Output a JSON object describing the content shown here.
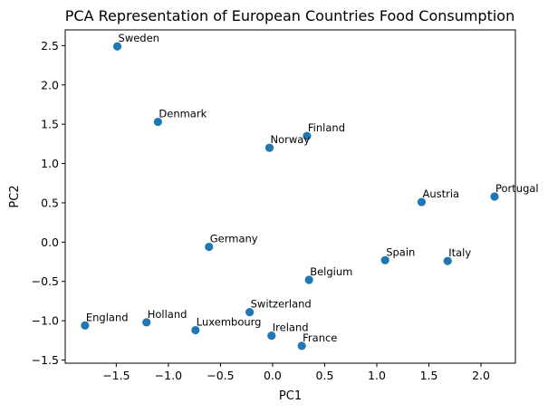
{
  "chart_data": {
    "type": "scatter",
    "title": "PCA Representation of European Countries Food Consumption",
    "xlabel": "PC1",
    "ylabel": "PC2",
    "xlim": [
      -1.99,
      2.33
    ],
    "ylim": [
      -1.54,
      2.7
    ],
    "xticks": [
      -1.5,
      -1.0,
      -0.5,
      0.0,
      0.5,
      1.0,
      1.5,
      2.0
    ],
    "xtick_labels": [
      "−1.5",
      "−1.0",
      "−0.5",
      "0.0",
      "0.5",
      "1.0",
      "1.5",
      "2.0"
    ],
    "yticks": [
      -1.5,
      -1.0,
      -0.5,
      0.0,
      0.5,
      1.0,
      1.5,
      2.0,
      2.5
    ],
    "ytick_labels": [
      "−1.5",
      "−1.0",
      "−0.5",
      "0.0",
      "0.5",
      "1.0",
      "1.5",
      "2.0",
      "2.5"
    ],
    "grid": false,
    "point_color": "#1f77b4",
    "points": [
      {
        "label": "Sweden",
        "x": -1.49,
        "y": 2.49
      },
      {
        "label": "Denmark",
        "x": -1.1,
        "y": 1.53
      },
      {
        "label": "Finland",
        "x": 0.33,
        "y": 1.35
      },
      {
        "label": "Norway",
        "x": -0.03,
        "y": 1.2
      },
      {
        "label": "Portugal",
        "x": 2.13,
        "y": 0.58
      },
      {
        "label": "Austria",
        "x": 1.43,
        "y": 0.51
      },
      {
        "label": "Germany",
        "x": -0.61,
        "y": -0.06
      },
      {
        "label": "Spain",
        "x": 1.08,
        "y": -0.23
      },
      {
        "label": "Italy",
        "x": 1.68,
        "y": -0.24
      },
      {
        "label": "Belgium",
        "x": 0.35,
        "y": -0.48
      },
      {
        "label": "Switzerland",
        "x": -0.22,
        "y": -0.89
      },
      {
        "label": "Holland",
        "x": -1.21,
        "y": -1.02
      },
      {
        "label": "England",
        "x": -1.8,
        "y": -1.06
      },
      {
        "label": "Luxembourg",
        "x": -0.74,
        "y": -1.12
      },
      {
        "label": "Ireland",
        "x": -0.01,
        "y": -1.19
      },
      {
        "label": "France",
        "x": 0.28,
        "y": -1.32
      }
    ]
  }
}
